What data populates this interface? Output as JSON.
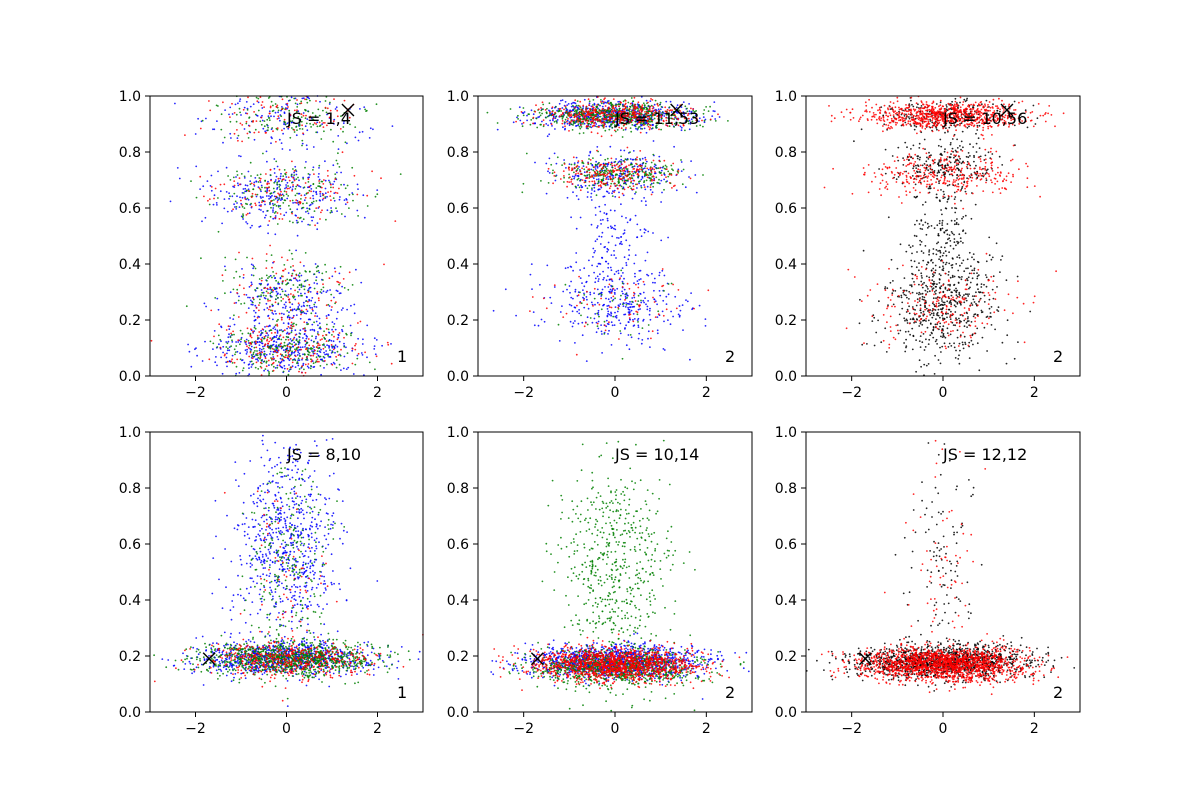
{
  "figure": {
    "background": "#ffffff"
  },
  "chart_data": [
    {
      "type": "scatter",
      "panel": 1,
      "annotation": "JS = 1,4",
      "tag": "1",
      "xlim": [
        -3,
        3
      ],
      "ylim": [
        0,
        1
      ],
      "xticks": [
        -2,
        0,
        2
      ],
      "yticks": [
        0.0,
        0.2,
        0.4,
        0.6,
        0.8,
        1.0
      ],
      "xtick_labels": [
        "−2",
        "0",
        "2"
      ],
      "ytick_labels": [
        "0.0",
        "0.2",
        "0.4",
        "0.6",
        "0.8",
        "1.0"
      ],
      "grid": false,
      "marker": {
        "x": 1.35,
        "y": 0.95,
        "symbol": "x",
        "color": "#000000"
      },
      "series": [
        {
          "color": "#0000ff",
          "n": 1100,
          "clusters": [
            {
              "y": 0.1,
              "sy": 0.05,
              "sx": 0.9,
              "w": 0.4
            },
            {
              "y": 0.28,
              "sy": 0.06,
              "sx": 0.7,
              "w": 0.2
            },
            {
              "y": 0.65,
              "sy": 0.06,
              "sx": 0.8,
              "w": 0.25
            },
            {
              "y": 0.92,
              "sy": 0.06,
              "sx": 0.9,
              "w": 0.15
            }
          ]
        },
        {
          "color": "#008000",
          "n": 700,
          "clusters": [
            {
              "y": 0.1,
              "sy": 0.05,
              "sx": 0.8,
              "w": 0.35
            },
            {
              "y": 0.32,
              "sy": 0.06,
              "sx": 0.7,
              "w": 0.2
            },
            {
              "y": 0.65,
              "sy": 0.05,
              "sx": 0.8,
              "w": 0.25
            },
            {
              "y": 0.93,
              "sy": 0.05,
              "sx": 0.8,
              "w": 0.2
            }
          ]
        },
        {
          "color": "#ff0000",
          "n": 500,
          "clusters": [
            {
              "y": 0.1,
              "sy": 0.05,
              "sx": 0.8,
              "w": 0.35
            },
            {
              "y": 0.3,
              "sy": 0.07,
              "sx": 0.7,
              "w": 0.2
            },
            {
              "y": 0.65,
              "sy": 0.05,
              "sx": 0.8,
              "w": 0.25
            },
            {
              "y": 0.93,
              "sy": 0.05,
              "sx": 0.8,
              "w": 0.2
            }
          ]
        }
      ]
    },
    {
      "type": "scatter",
      "panel": 2,
      "annotation": "JS = 11,53",
      "tag": "2",
      "xlim": [
        -3,
        3
      ],
      "ylim": [
        0,
        1
      ],
      "xticks": [
        -2,
        0,
        2
      ],
      "yticks": [
        0.0,
        0.2,
        0.4,
        0.6,
        0.8,
        1.0
      ],
      "xtick_labels": [
        "−2",
        "0",
        "2"
      ],
      "ytick_labels": [
        "0.0",
        "0.2",
        "0.4",
        "0.6",
        "0.8",
        "1.0"
      ],
      "grid": false,
      "marker": {
        "x": 1.35,
        "y": 0.95,
        "symbol": "x",
        "color": "#000000"
      },
      "series": [
        {
          "color": "#0000ff",
          "n": 1300,
          "clusters": [
            {
              "y": 0.93,
              "sy": 0.025,
              "sx": 0.9,
              "w": 0.45
            },
            {
              "y": 0.72,
              "sy": 0.04,
              "sx": 0.7,
              "w": 0.2
            },
            {
              "y": 0.25,
              "sy": 0.07,
              "sx": 0.8,
              "w": 0.25
            },
            {
              "y": 0.5,
              "sy": 0.12,
              "sx": 0.4,
              "w": 0.1
            }
          ]
        },
        {
          "color": "#008000",
          "n": 900,
          "clusters": [
            {
              "y": 0.93,
              "sy": 0.025,
              "sx": 0.9,
              "w": 0.65
            },
            {
              "y": 0.72,
              "sy": 0.03,
              "sx": 0.7,
              "w": 0.3
            },
            {
              "y": 0.25,
              "sy": 0.06,
              "sx": 0.7,
              "w": 0.05
            }
          ]
        },
        {
          "color": "#ff0000",
          "n": 700,
          "clusters": [
            {
              "y": 0.93,
              "sy": 0.025,
              "sx": 0.8,
              "w": 0.6
            },
            {
              "y": 0.72,
              "sy": 0.03,
              "sx": 0.7,
              "w": 0.3
            },
            {
              "y": 0.25,
              "sy": 0.06,
              "sx": 0.7,
              "w": 0.1
            }
          ]
        }
      ]
    },
    {
      "type": "scatter",
      "panel": 3,
      "annotation": "JS = 10,56",
      "tag": "2",
      "xlim": [
        -3,
        3
      ],
      "ylim": [
        0,
        1
      ],
      "xticks": [
        -2,
        0,
        2
      ],
      "yticks": [
        0.0,
        0.2,
        0.4,
        0.6,
        0.8,
        1.0
      ],
      "xtick_labels": [
        "−2",
        "0",
        "2"
      ],
      "ytick_labels": [
        "0.0",
        "0.2",
        "0.4",
        "0.6",
        "0.8",
        "1.0"
      ],
      "grid": false,
      "marker": {
        "x": 1.4,
        "y": 0.95,
        "symbol": "x",
        "color": "#000000"
      },
      "series": [
        {
          "color": "#000000",
          "n": 1200,
          "clusters": [
            {
              "y": 0.93,
              "sy": 0.03,
              "sx": 0.7,
              "w": 0.2
            },
            {
              "y": 0.75,
              "sy": 0.05,
              "sx": 0.6,
              "w": 0.2
            },
            {
              "y": 0.25,
              "sy": 0.1,
              "sx": 0.7,
              "w": 0.45
            },
            {
              "y": 0.5,
              "sy": 0.12,
              "sx": 0.35,
              "w": 0.15
            }
          ]
        },
        {
          "color": "#ff0000",
          "n": 1300,
          "clusters": [
            {
              "y": 0.93,
              "sy": 0.025,
              "sx": 0.9,
              "w": 0.6
            },
            {
              "y": 0.72,
              "sy": 0.04,
              "sx": 0.8,
              "w": 0.25
            },
            {
              "y": 0.25,
              "sy": 0.07,
              "sx": 0.8,
              "w": 0.15
            }
          ]
        }
      ]
    },
    {
      "type": "scatter",
      "panel": 4,
      "annotation": "JS = 8,10",
      "tag": "1",
      "xlim": [
        -3,
        3
      ],
      "ylim": [
        0,
        1
      ],
      "xticks": [
        -2,
        0,
        2
      ],
      "yticks": [
        0.0,
        0.2,
        0.4,
        0.6,
        0.8,
        1.0
      ],
      "xtick_labels": [
        "−2",
        "0",
        "2"
      ],
      "ytick_labels": [
        "0.0",
        "0.2",
        "0.4",
        "0.6",
        "0.8",
        "1.0"
      ],
      "grid": false,
      "marker": {
        "x": -1.7,
        "y": 0.19,
        "symbol": "x",
        "color": "#000000"
      },
      "series": [
        {
          "color": "#0000ff",
          "n": 1500,
          "clusters": [
            {
              "y": 0.19,
              "sy": 0.03,
              "sx": 1.0,
              "w": 0.55
            },
            {
              "y": 0.6,
              "sy": 0.18,
              "sx": 0.6,
              "w": 0.45
            }
          ]
        },
        {
          "color": "#008000",
          "n": 1200,
          "clusters": [
            {
              "y": 0.19,
              "sy": 0.03,
              "sx": 1.0,
              "w": 0.8
            },
            {
              "y": 0.55,
              "sy": 0.18,
              "sx": 0.5,
              "w": 0.2
            }
          ]
        },
        {
          "color": "#ff0000",
          "n": 500,
          "clusters": [
            {
              "y": 0.19,
              "sy": 0.03,
              "sx": 0.9,
              "w": 0.85
            },
            {
              "y": 0.5,
              "sy": 0.18,
              "sx": 0.5,
              "w": 0.15
            }
          ]
        }
      ]
    },
    {
      "type": "scatter",
      "panel": 5,
      "annotation": "JS = 10,14",
      "tag": "2",
      "xlim": [
        -3,
        3
      ],
      "ylim": [
        0,
        1
      ],
      "xticks": [
        -2,
        0,
        2
      ],
      "yticks": [
        0.0,
        0.2,
        0.4,
        0.6,
        0.8,
        1.0
      ],
      "xtick_labels": [
        "−2",
        "0",
        "2"
      ],
      "ytick_labels": [
        "0.0",
        "0.2",
        "0.4",
        "0.6",
        "0.8",
        "1.0"
      ],
      "grid": false,
      "marker": {
        "x": -1.7,
        "y": 0.19,
        "symbol": "x",
        "color": "#000000"
      },
      "series": [
        {
          "color": "#0000ff",
          "n": 1200,
          "clusters": [
            {
              "y": 0.18,
              "sy": 0.03,
              "sx": 1.0,
              "w": 1.0
            }
          ]
        },
        {
          "color": "#008000",
          "n": 1500,
          "clusters": [
            {
              "y": 0.16,
              "sy": 0.03,
              "sx": 0.9,
              "w": 0.6
            },
            {
              "y": 0.5,
              "sy": 0.2,
              "sx": 0.6,
              "w": 0.4
            }
          ]
        },
        {
          "color": "#ff0000",
          "n": 1300,
          "clusters": [
            {
              "y": 0.17,
              "sy": 0.03,
              "sx": 0.9,
              "w": 1.0
            }
          ]
        }
      ]
    },
    {
      "type": "scatter",
      "panel": 6,
      "annotation": "JS = 12,12",
      "tag": "2",
      "xlim": [
        -3,
        3
      ],
      "ylim": [
        0,
        1
      ],
      "xticks": [
        -2,
        0,
        2
      ],
      "yticks": [
        0.0,
        0.2,
        0.4,
        0.6,
        0.8,
        1.0
      ],
      "xtick_labels": [
        "−2",
        "0",
        "2"
      ],
      "ytick_labels": [
        "0.0",
        "0.2",
        "0.4",
        "0.6",
        "0.8",
        "1.0"
      ],
      "grid": false,
      "marker": {
        "x": -1.7,
        "y": 0.19,
        "symbol": "x",
        "color": "#000000"
      },
      "series": [
        {
          "color": "#000000",
          "n": 1400,
          "clusters": [
            {
              "y": 0.18,
              "sy": 0.03,
              "sx": 1.0,
              "w": 0.92
            },
            {
              "y": 0.55,
              "sy": 0.2,
              "sx": 0.4,
              "w": 0.08
            }
          ]
        },
        {
          "color": "#ff0000",
          "n": 1700,
          "clusters": [
            {
              "y": 0.17,
              "sy": 0.03,
              "sx": 0.9,
              "w": 0.96
            },
            {
              "y": 0.5,
              "sy": 0.2,
              "sx": 0.4,
              "w": 0.04
            }
          ]
        }
      ]
    }
  ]
}
